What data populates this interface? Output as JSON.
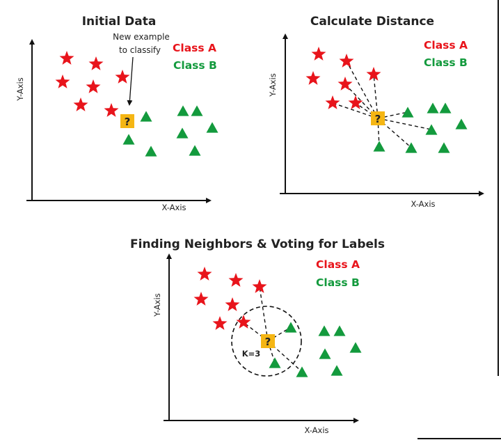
{
  "colors": {
    "class_a": "#e8141b",
    "class_b": "#139a3d",
    "query": "#f5b614",
    "axis": "#111111",
    "neighbor_circle": "#111111"
  },
  "panels": [
    {
      "id": "initial-data",
      "title": "Initial Data",
      "x_label": "X-Axis",
      "y_label": "Y-Axis",
      "legend": {
        "class_a": "Class A",
        "class_b": "Class B"
      },
      "annotation": {
        "line1": "New example",
        "line2": "to classify"
      },
      "query_symbol": "?"
    },
    {
      "id": "calculate-distance",
      "title": "Calculate Distance",
      "x_label": "X-Axis",
      "y_label": "Y-Axis",
      "legend": {
        "class_a": "Class A",
        "class_b": "Class B"
      },
      "query_symbol": "?"
    },
    {
      "id": "finding-neighbors",
      "title": "Finding Neighbors & Voting for Labels",
      "x_label": "X-Axis",
      "y_label": "Y-Axis",
      "legend": {
        "class_a": "Class A",
        "class_b": "Class B"
      },
      "k_label": "K=3",
      "query_symbol": "?"
    }
  ]
}
